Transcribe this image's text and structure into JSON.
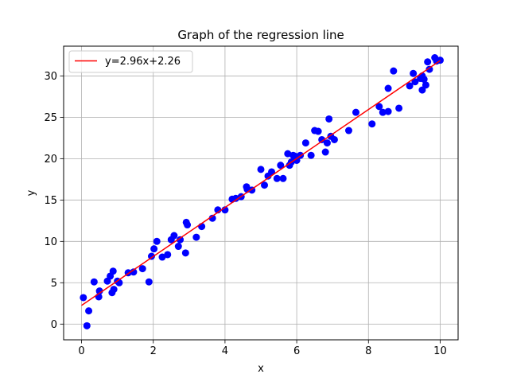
{
  "chart_data": {
    "type": "scatter",
    "title": "Graph of the regression line",
    "xlabel": "x",
    "ylabel": "y",
    "xlim": [
      -0.5,
      10.5
    ],
    "ylim": [
      -1.9,
      33.6
    ],
    "xticks": [
      0,
      2,
      4,
      6,
      8,
      10
    ],
    "yticks": [
      0,
      5,
      10,
      15,
      20,
      25,
      30
    ],
    "grid": true,
    "legend_position": "top-left",
    "colors": {
      "points": "#0000ff",
      "line": "#ff0000"
    },
    "regression": {
      "label": "y=2.96x+2.26",
      "slope": 2.96,
      "intercept": 2.26,
      "x_range": [
        0,
        10
      ]
    },
    "points": [
      [
        0.05,
        3.2
      ],
      [
        0.15,
        -0.2
      ],
      [
        0.2,
        1.6
      ],
      [
        0.35,
        5.1
      ],
      [
        0.48,
        3.3
      ],
      [
        0.5,
        4.0
      ],
      [
        0.72,
        5.2
      ],
      [
        0.8,
        5.8
      ],
      [
        0.85,
        3.8
      ],
      [
        0.88,
        6.4
      ],
      [
        0.9,
        4.2
      ],
      [
        1.0,
        5.2
      ],
      [
        1.05,
        5.0
      ],
      [
        1.3,
        6.2
      ],
      [
        1.45,
        6.3
      ],
      [
        1.7,
        6.7
      ],
      [
        1.88,
        5.1
      ],
      [
        1.95,
        8.2
      ],
      [
        2.02,
        9.1
      ],
      [
        2.1,
        10.0
      ],
      [
        2.25,
        8.1
      ],
      [
        2.4,
        8.4
      ],
      [
        2.5,
        10.2
      ],
      [
        2.58,
        10.7
      ],
      [
        2.7,
        9.4
      ],
      [
        2.75,
        10.2
      ],
      [
        2.9,
        8.6
      ],
      [
        2.92,
        12.3
      ],
      [
        2.95,
        12.0
      ],
      [
        3.2,
        10.5
      ],
      [
        3.35,
        11.8
      ],
      [
        3.65,
        12.8
      ],
      [
        3.8,
        13.8
      ],
      [
        4.0,
        13.8
      ],
      [
        4.2,
        15.1
      ],
      [
        4.3,
        15.2
      ],
      [
        4.45,
        15.4
      ],
      [
        4.6,
        16.6
      ],
      [
        4.62,
        16.3
      ],
      [
        4.75,
        16.2
      ],
      [
        5.0,
        18.7
      ],
      [
        5.1,
        16.8
      ],
      [
        5.2,
        17.9
      ],
      [
        5.3,
        18.4
      ],
      [
        5.45,
        17.6
      ],
      [
        5.55,
        19.2
      ],
      [
        5.62,
        17.6
      ],
      [
        5.75,
        20.6
      ],
      [
        5.8,
        19.2
      ],
      [
        5.85,
        19.6
      ],
      [
        5.9,
        20.4
      ],
      [
        5.95,
        20.3
      ],
      [
        6.0,
        19.8
      ],
      [
        6.1,
        20.4
      ],
      [
        6.25,
        21.9
      ],
      [
        6.4,
        20.4
      ],
      [
        6.5,
        23.4
      ],
      [
        6.6,
        23.3
      ],
      [
        6.7,
        22.3
      ],
      [
        6.8,
        20.8
      ],
      [
        6.85,
        21.9
      ],
      [
        6.9,
        24.8
      ],
      [
        6.95,
        22.7
      ],
      [
        7.05,
        22.3
      ],
      [
        7.45,
        23.4
      ],
      [
        7.65,
        25.6
      ],
      [
        8.1,
        24.2
      ],
      [
        8.3,
        26.3
      ],
      [
        8.4,
        25.6
      ],
      [
        8.55,
        28.5
      ],
      [
        8.55,
        25.7
      ],
      [
        8.7,
        30.6
      ],
      [
        8.85,
        26.1
      ],
      [
        9.15,
        28.8
      ],
      [
        9.25,
        30.3
      ],
      [
        9.3,
        29.3
      ],
      [
        9.45,
        29.7
      ],
      [
        9.5,
        28.3
      ],
      [
        9.5,
        30.0
      ],
      [
        9.55,
        29.6
      ],
      [
        9.6,
        28.9
      ],
      [
        9.65,
        31.7
      ],
      [
        9.7,
        30.8
      ],
      [
        9.85,
        32.2
      ],
      [
        9.9,
        31.8
      ],
      [
        10.0,
        31.9
      ]
    ]
  }
}
